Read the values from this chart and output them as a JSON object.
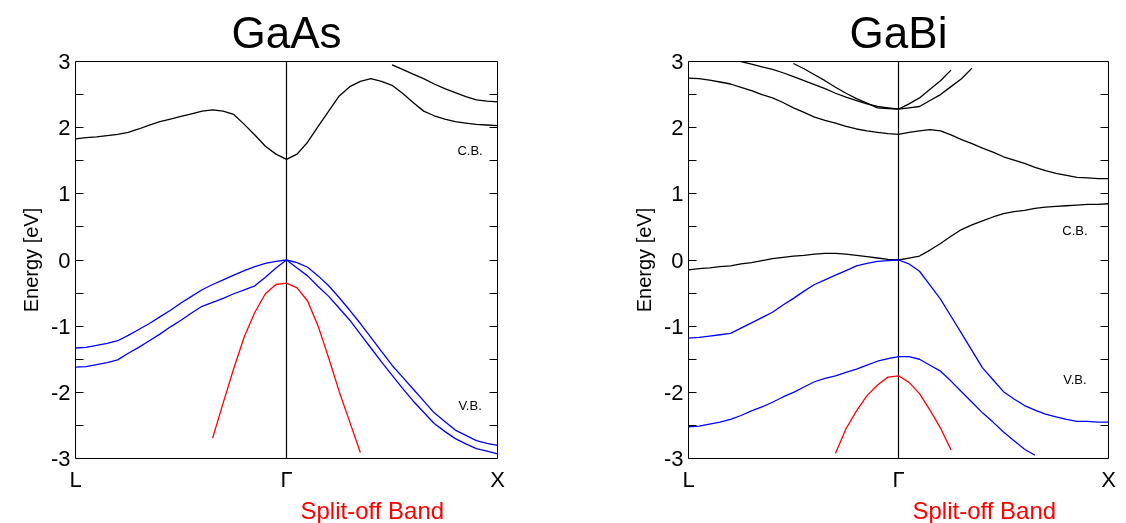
{
  "chart_data": [
    {
      "type": "line",
      "title": "GaAs",
      "ylabel": "Energy [eV]",
      "ylim": [
        -3,
        3
      ],
      "categories": [
        "L",
        null,
        null,
        null,
        null,
        null,
        null,
        null,
        null,
        null,
        null,
        null,
        null,
        null,
        null,
        null,
        null,
        null,
        null,
        null,
        "Γ",
        null,
        null,
        null,
        null,
        null,
        null,
        null,
        null,
        null,
        null,
        null,
        null,
        null,
        null,
        null,
        null,
        null,
        null,
        null,
        "X"
      ],
      "yticks": [
        -3,
        {
          "value": -2.5,
          "label": null
        },
        -2,
        {
          "value": -1.5,
          "label": null
        },
        -1,
        {
          "value": -0.5,
          "label": null
        },
        0,
        {
          "value": 0.5,
          "label": null
        },
        1,
        {
          "value": 1.5,
          "label": null
        },
        2,
        {
          "value": 2.5,
          "label": null
        },
        3
      ],
      "grid": "x",
      "annotations": [
        "C.B.",
        "V.B."
      ],
      "series": [
        {
          "color": "#000000",
          "values": [
            1.83,
            1.85,
            1.86,
            1.88,
            1.9,
            1.93,
            1.98,
            2.04,
            2.09,
            2.13,
            2.17,
            2.21,
            2.25,
            2.27,
            2.25,
            2.2,
            2.05,
            1.89,
            1.72,
            1.6,
            1.52,
            1.6,
            1.78,
            2.02,
            2.25,
            2.48,
            2.62,
            2.7,
            2.74,
            2.7,
            2.64,
            2.52,
            2.38,
            2.25,
            2.18,
            2.13,
            2.09,
            2.07,
            2.05,
            2.04,
            2.03
          ]
        },
        {
          "color": "#000000",
          "values": [
            null,
            null,
            null,
            null,
            null,
            null,
            null,
            null,
            null,
            null,
            null,
            null,
            null,
            null,
            null,
            null,
            null,
            null,
            null,
            null,
            null,
            null,
            null,
            null,
            null,
            null,
            null,
            null,
            null,
            null,
            2.95,
            2.88,
            2.81,
            2.74,
            2.66,
            2.59,
            2.53,
            2.47,
            2.42,
            2.4,
            2.39
          ]
        },
        {
          "color": "#0000ff",
          "values": [
            -1.33,
            -1.32,
            -1.29,
            -1.26,
            -1.22,
            -1.14,
            -1.05,
            -0.96,
            -0.86,
            -0.76,
            -0.65,
            -0.55,
            -0.45,
            -0.37,
            -0.3,
            -0.23,
            -0.16,
            -0.1,
            -0.05,
            -0.02,
            0,
            -0.04,
            -0.11,
            -0.24,
            -0.39,
            -0.57,
            -0.76,
            -0.96,
            -1.17,
            -1.38,
            -1.59,
            -1.77,
            -1.95,
            -2.13,
            -2.31,
            -2.44,
            -2.57,
            -2.65,
            -2.73,
            -2.77,
            -2.8
          ]
        },
        {
          "color": "#0000ff",
          "values": [
            -1.62,
            -1.61,
            -1.58,
            -1.55,
            -1.51,
            -1.41,
            -1.32,
            -1.22,
            -1.12,
            -1.01,
            -0.91,
            -0.8,
            -0.7,
            -0.64,
            -0.58,
            -0.51,
            -0.45,
            -0.39,
            -0.26,
            -0.12,
            0,
            -0.12,
            -0.24,
            -0.4,
            -0.55,
            -0.73,
            -0.91,
            -1.12,
            -1.33,
            -1.54,
            -1.74,
            -1.94,
            -2.13,
            -2.3,
            -2.47,
            -2.59,
            -2.7,
            -2.78,
            -2.85,
            -2.89,
            -2.93
          ]
        },
        {
          "name": "Split-off Band",
          "color": "#ff0000",
          "values": [
            null,
            null,
            null,
            null,
            null,
            null,
            null,
            null,
            null,
            null,
            null,
            null,
            null,
            -2.69,
            -2.16,
            -1.64,
            -1.16,
            -0.79,
            -0.51,
            -0.37,
            -0.35,
            -0.42,
            -0.62,
            -1.0,
            -1.48,
            -1.99,
            -2.45,
            -2.91,
            null,
            null,
            null,
            null,
            null,
            null,
            null,
            null,
            null,
            null,
            null,
            null,
            null
          ]
        }
      ]
    },
    {
      "type": "line",
      "title": "GaBi",
      "ylabel": "Energy [eV]",
      "ylim": [
        -3,
        3
      ],
      "categories": [
        "L",
        null,
        null,
        null,
        null,
        null,
        null,
        null,
        null,
        null,
        null,
        null,
        null,
        null,
        null,
        null,
        null,
        null,
        null,
        null,
        "Γ",
        null,
        null,
        null,
        null,
        null,
        null,
        null,
        null,
        null,
        null,
        null,
        null,
        null,
        null,
        null,
        null,
        null,
        null,
        null,
        "X"
      ],
      "yticks": [
        -3,
        {
          "value": -2.5,
          "label": null
        },
        -2,
        {
          "value": -1.5,
          "label": null
        },
        -1,
        {
          "value": -0.5,
          "label": null
        },
        0,
        {
          "value": 0.5,
          "label": null
        },
        1,
        {
          "value": 1.5,
          "label": null
        },
        2,
        {
          "value": 2.5,
          "label": null
        },
        3
      ],
      "grid": "x",
      "annotations": [
        "C.B.",
        "V.B."
      ],
      "series": [
        {
          "color": "#000000",
          "values": [
            2.75,
            2.74,
            2.72,
            2.69,
            2.66,
            2.61,
            2.56,
            2.5,
            2.45,
            2.38,
            2.3,
            2.23,
            2.16,
            2.11,
            2.07,
            2.02,
            1.98,
            1.95,
            1.93,
            1.91,
            1.9,
            1.93,
            1.95,
            1.97,
            1.95,
            1.89,
            1.82,
            1.76,
            1.69,
            1.63,
            1.56,
            1.51,
            1.46,
            1.4,
            1.35,
            1.31,
            1.28,
            1.25,
            1.24,
            1.23,
            1.23
          ]
        },
        {
          "color": "#000000",
          "values": [
            null,
            null,
            null,
            null,
            null,
            3.0,
            2.96,
            2.92,
            2.88,
            2.83,
            2.77,
            2.71,
            2.65,
            2.59,
            2.52,
            2.46,
            2.41,
            2.36,
            2.32,
            2.3,
            2.28,
            2.3,
            2.32,
            2.41,
            2.5,
            2.62,
            2.74,
            2.9,
            null,
            null,
            null,
            null,
            null,
            null,
            null,
            null,
            null,
            null,
            null,
            null,
            null
          ]
        },
        {
          "color": "#000000",
          "values": [
            null,
            null,
            null,
            null,
            null,
            null,
            null,
            null,
            null,
            null,
            2.97,
            2.89,
            2.8,
            2.71,
            2.61,
            2.52,
            2.44,
            2.37,
            2.3,
            2.29,
            2.28,
            2.36,
            2.45,
            2.58,
            2.71,
            2.87,
            null,
            null,
            null,
            null,
            null,
            null,
            null,
            null,
            null,
            null,
            null,
            null,
            null,
            null,
            null
          ]
        },
        {
          "color": "#000000",
          "values": [
            -0.15,
            -0.13,
            -0.12,
            -0.1,
            -0.09,
            -0.06,
            -0.04,
            -0.01,
            0.02,
            0.04,
            0.06,
            0.07,
            0.09,
            0.1,
            0.1,
            0.09,
            0.07,
            0.05,
            0.03,
            0.01,
            0,
            0.03,
            0.06,
            0.15,
            0.25,
            0.36,
            0.46,
            0.53,
            0.59,
            0.65,
            0.7,
            0.73,
            0.75,
            0.78,
            0.8,
            0.81,
            0.82,
            0.83,
            0.84,
            0.84,
            0.85
          ]
        },
        {
          "color": "#0000ff",
          "values": [
            -1.18,
            -1.17,
            -1.15,
            -1.13,
            -1.11,
            -1.03,
            -0.95,
            -0.87,
            -0.79,
            -0.68,
            -0.58,
            -0.47,
            -0.37,
            -0.3,
            -0.23,
            -0.16,
            -0.09,
            -0.05,
            -0.02,
            -0.01,
            0,
            -0.06,
            -0.17,
            -0.38,
            -0.59,
            -0.85,
            -1.11,
            -1.37,
            -1.63,
            -1.81,
            -1.99,
            -2.1,
            -2.2,
            -2.27,
            -2.33,
            -2.37,
            -2.41,
            -2.44,
            -2.44,
            -2.45,
            -2.45
          ]
        },
        {
          "color": "#0000ff",
          "values": [
            -2.52,
            -2.51,
            -2.48,
            -2.45,
            -2.41,
            -2.35,
            -2.28,
            -2.22,
            -2.15,
            -2.07,
            -2.0,
            -1.92,
            -1.84,
            -1.79,
            -1.75,
            -1.7,
            -1.65,
            -1.59,
            -1.53,
            -1.49,
            -1.46,
            -1.46,
            -1.5,
            -1.59,
            -1.68,
            -1.83,
            -1.99,
            -2.15,
            -2.31,
            -2.45,
            -2.6,
            -2.73,
            -2.86,
            -2.95,
            null,
            null,
            null,
            null,
            null,
            null,
            null
          ]
        },
        {
          "name": "Split-off Band",
          "color": "#ff0000",
          "values": [
            null,
            null,
            null,
            null,
            null,
            null,
            null,
            null,
            null,
            null,
            null,
            null,
            null,
            null,
            -2.92,
            -2.55,
            -2.28,
            -2.05,
            -1.89,
            -1.77,
            -1.75,
            -1.85,
            -2.02,
            -2.27,
            -2.54,
            -2.87,
            null,
            null,
            null,
            null,
            null,
            null,
            null,
            null,
            null,
            null,
            null,
            null,
            null,
            null,
            null
          ]
        }
      ]
    }
  ]
}
